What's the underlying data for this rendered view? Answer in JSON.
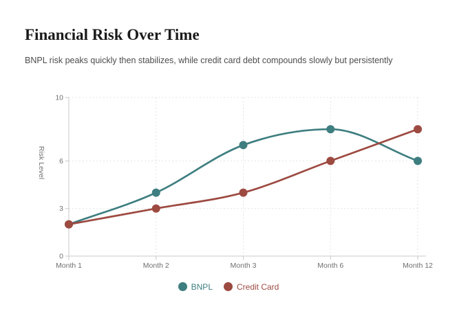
{
  "header": {
    "title": "Financial Risk Over Time",
    "subtitle": "BNPL risk peaks quickly then stabilizes, while credit card debt compounds slowly but persistently"
  },
  "chart_data": {
    "type": "line",
    "categories": [
      "Month 1",
      "Month 2",
      "Month 3",
      "Month 6",
      "Month 12"
    ],
    "series": [
      {
        "name": "BNPL",
        "color": "#3E7E80",
        "values": [
          2,
          4,
          7,
          8,
          6
        ]
      },
      {
        "name": "Credit Card",
        "color": "#9D4A41",
        "values": [
          2,
          3,
          4,
          6,
          8
        ]
      }
    ],
    "xlabel": "",
    "ylabel": "Risk Level",
    "ylim": [
      0,
      10
    ],
    "yticks": [
      0,
      3,
      6,
      10
    ],
    "grid": true,
    "grid_style": "dotted",
    "curve": "smooth",
    "point_radius": 6,
    "legend_position": "bottom",
    "colors": {
      "axis": "#c9c9c9",
      "grid": "#e3e3e3",
      "tick_label": "#6f6f6f",
      "axis_title": "#6f6f6f"
    }
  }
}
